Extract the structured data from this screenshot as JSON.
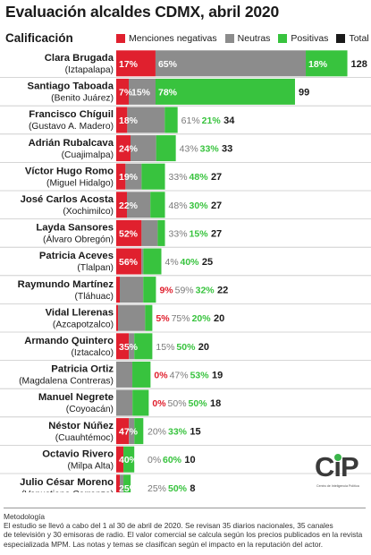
{
  "title": "Evaluación alcaldes CDMX, abril 2020",
  "subtitle": "Calificación",
  "legend": {
    "negativas": "Menciones negativas",
    "neutras": "Neutras",
    "positivas": "Positivas",
    "total": "Total"
  },
  "colors": {
    "negativas": "#e0202e",
    "neutras": "#8c8c8c",
    "positivas": "#38c33e",
    "total": "#1a1a1a"
  },
  "chart_data": {
    "type": "bar",
    "stacked": true,
    "orientation": "horizontal",
    "title": "Evaluación alcaldes CDMX, abril 2020",
    "categories": [
      {
        "name": "Clara Brugada",
        "borough": "(Iztapalapa)"
      },
      {
        "name": "Santiago Taboada",
        "borough": "(Benito Juárez)"
      },
      {
        "name": "Francisco Chíguil",
        "borough": "(Gustavo A. Madero)"
      },
      {
        "name": "Adrián Rubalcava",
        "borough": "(Cuajimalpa)"
      },
      {
        "name": "Víctor Hugo Romo",
        "borough": "(Miguel Hidalgo)"
      },
      {
        "name": "José Carlos Acosta",
        "borough": "(Xochimilco)"
      },
      {
        "name": "Layda Sansores",
        "borough": "(Álvaro Obregón)"
      },
      {
        "name": "Patricia Aceves",
        "borough": "(Tlalpan)"
      },
      {
        "name": "Raymundo Martínez",
        "borough": "(Tláhuac)"
      },
      {
        "name": "Vidal Llerenas",
        "borough": "(Azcapotzalco)"
      },
      {
        "name": "Armando Quintero",
        "borough": "(Iztacalco)"
      },
      {
        "name": "Patricia Ortiz",
        "borough": "(Magdalena Contreras)"
      },
      {
        "name": "Manuel Negrete",
        "borough": "(Coyoacán)"
      },
      {
        "name": "Néstor Núñez",
        "borough": "(Cuauhtémoc)"
      },
      {
        "name": "Octavio Rivero",
        "borough": "(Milpa Alta)"
      },
      {
        "name": "Julio César Moreno",
        "borough": "(Venustiano Carranza)"
      }
    ],
    "series": [
      {
        "name": "Menciones negativas",
        "unit": "%",
        "values": [
          17,
          7,
          18,
          24,
          19,
          22,
          52,
          56,
          9,
          5,
          35,
          0,
          0,
          47,
          40,
          25
        ]
      },
      {
        "name": "Neutras",
        "unit": "%",
        "values": [
          65,
          15,
          61,
          43,
          33,
          48,
          33,
          4,
          59,
          75,
          15,
          47,
          50,
          20,
          0,
          25
        ]
      },
      {
        "name": "Positivas",
        "unit": "%",
        "values": [
          18,
          78,
          21,
          33,
          48,
          30,
          15,
          40,
          32,
          20,
          50,
          53,
          50,
          33,
          60,
          50
        ]
      },
      {
        "name": "Total",
        "values": [
          128,
          99,
          34,
          33,
          27,
          27,
          27,
          25,
          22,
          20,
          20,
          19,
          18,
          15,
          10,
          8
        ]
      }
    ]
  },
  "logo": {
    "text": "CiP",
    "subtext": "Centro de Inteligencia Política"
  },
  "notes": {
    "heading": "Metodología",
    "line1": "El estudio se llevó a cabo del 1 al 30 de abril de 2020. Se revisan 35 diarios nacionales, 35 canales",
    "line2": "de televisión y 30 emisoras de radio. El valor comercial se calcula según los precios publicados en la revista",
    "line3": "especializada MPM. Las notas y temas se clasifican según el impacto en la reputación del actor."
  }
}
